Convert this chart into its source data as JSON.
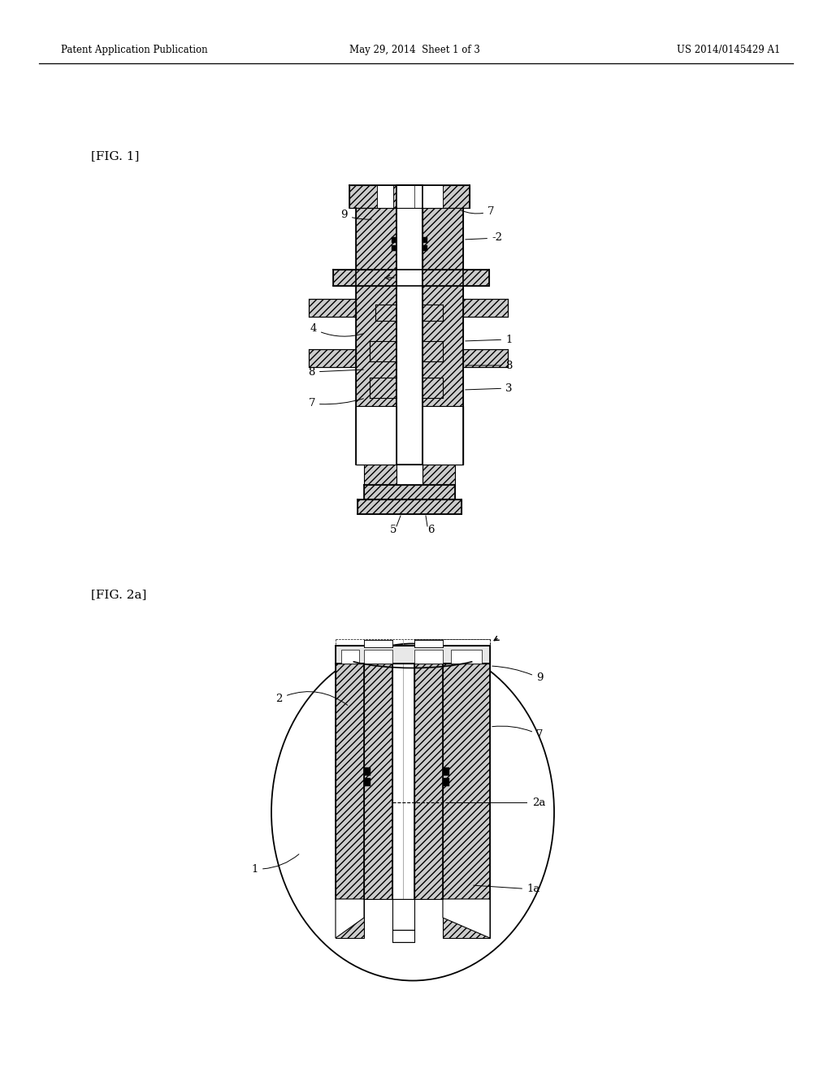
{
  "background_color": "#ffffff",
  "header_left": "Patent Application Publication",
  "header_center": "May 29, 2014  Sheet 1 of 3",
  "header_right": "US 2014/0145429 A1",
  "fig1_label": "[FIG. 1]",
  "fig2a_label": "[FIG. 2a]",
  "lc": "#000000",
  "hfc": "#cccccc",
  "lw": 0.8,
  "lw2": 1.2,
  "fs": 9.5
}
